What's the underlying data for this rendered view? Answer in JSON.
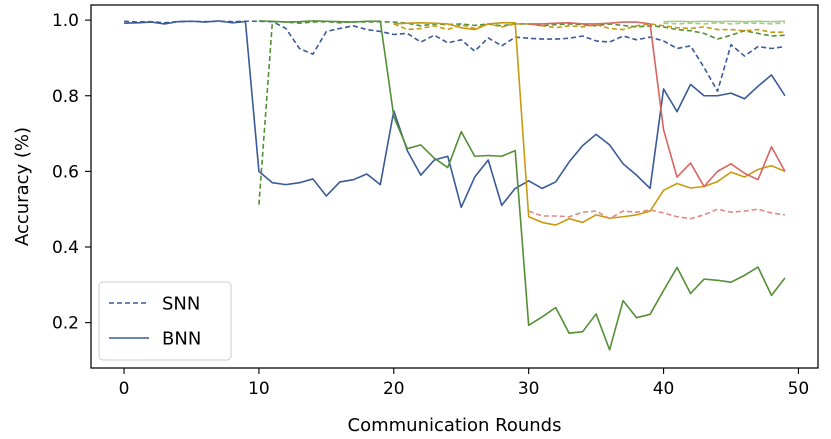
{
  "chart_data": {
    "type": "line",
    "title": "",
    "xlabel": "Communication Rounds",
    "ylabel": "Accuracy (%)",
    "xlim": [
      -2.45,
      51.45
    ],
    "ylim": [
      0.08,
      1.04
    ],
    "xticks": [
      "0",
      "10",
      "20",
      "30",
      "40",
      "50"
    ],
    "yticks": [
      "0.2",
      "0.4",
      "0.6",
      "0.8",
      "1.0"
    ],
    "grid": false,
    "legend": {
      "position": "lower-left",
      "entries": [
        {
          "label": "SNN",
          "style": "dashed",
          "color": "#3a5a98"
        },
        {
          "label": "BNN",
          "style": "solid",
          "color": "#3a5a98"
        }
      ]
    },
    "series": [
      {
        "kind": "SNN",
        "style": "dashed",
        "color": "#3a5a98",
        "x": [
          0,
          1,
          2,
          3,
          4,
          5,
          6,
          7,
          8,
          9,
          10,
          11,
          12,
          13,
          14,
          15,
          16,
          17,
          18,
          19,
          20,
          21,
          22,
          23,
          24,
          25,
          26,
          27,
          28,
          29,
          30,
          31,
          32,
          33,
          34,
          35,
          36,
          37,
          38,
          39,
          40,
          41,
          42,
          43,
          44,
          45,
          46,
          47,
          48,
          49
        ],
        "y": [
          0.997,
          0.995,
          0.996,
          0.993,
          0.996,
          0.997,
          0.996,
          0.997,
          0.996,
          0.997,
          0.997,
          0.996,
          0.978,
          0.925,
          0.91,
          0.97,
          0.978,
          0.985,
          0.975,
          0.97,
          0.962,
          0.965,
          0.942,
          0.96,
          0.94,
          0.948,
          0.918,
          0.953,
          0.932,
          0.955,
          0.952,
          0.95,
          0.95,
          0.952,
          0.958,
          0.945,
          0.942,
          0.958,
          0.948,
          0.955,
          0.945,
          0.925,
          0.932,
          0.875,
          0.812,
          0.935,
          0.905,
          0.93,
          0.925,
          0.93
        ]
      },
      {
        "kind": "BNN",
        "style": "solid",
        "color": "#3a5a98",
        "x": [
          0,
          1,
          2,
          3,
          4,
          5,
          6,
          7,
          8,
          9,
          10,
          11,
          12,
          13,
          14,
          15,
          16,
          17,
          18,
          19,
          20,
          21,
          22,
          23,
          24,
          25,
          26,
          27,
          28,
          29,
          30,
          31,
          32,
          33,
          34,
          35,
          36,
          37,
          38,
          39,
          40,
          41,
          42,
          43,
          44,
          45,
          46,
          47,
          48,
          49
        ],
        "y": [
          0.992,
          0.993,
          0.995,
          0.99,
          0.996,
          0.997,
          0.995,
          0.998,
          0.993,
          0.996,
          0.6,
          0.57,
          0.565,
          0.57,
          0.58,
          0.535,
          0.572,
          0.578,
          0.593,
          0.565,
          0.76,
          0.655,
          0.59,
          0.63,
          0.64,
          0.505,
          0.585,
          0.63,
          0.51,
          0.555,
          0.575,
          0.555,
          0.572,
          0.625,
          0.668,
          0.698,
          0.67,
          0.62,
          0.59,
          0.555,
          0.818,
          0.758,
          0.83,
          0.8,
          0.8,
          0.807,
          0.792,
          0.825,
          0.855,
          0.8
        ]
      },
      {
        "kind": "SNN",
        "style": "dashed",
        "color": "#538f35",
        "x": [
          10,
          11,
          12,
          13,
          14,
          15,
          16,
          17,
          18,
          19,
          20,
          21,
          22,
          23,
          24,
          25,
          26,
          27,
          28,
          29,
          30,
          31,
          32,
          33,
          34,
          35,
          36,
          37,
          38,
          39,
          40,
          41,
          42,
          43,
          44,
          45,
          46,
          47,
          48,
          49
        ],
        "y": [
          0.512,
          0.996,
          0.995,
          0.992,
          0.995,
          0.996,
          0.993,
          0.996,
          0.995,
          0.996,
          0.995,
          0.992,
          0.985,
          0.99,
          0.988,
          0.99,
          0.986,
          0.99,
          0.985,
          0.99,
          0.99,
          0.985,
          0.988,
          0.99,
          0.988,
          0.985,
          0.99,
          0.986,
          0.982,
          0.985,
          0.982,
          0.975,
          0.972,
          0.965,
          0.95,
          0.96,
          0.972,
          0.965,
          0.958,
          0.96
        ]
      },
      {
        "kind": "BNN",
        "style": "solid",
        "color": "#538f35",
        "x": [
          10,
          11,
          12,
          13,
          14,
          15,
          16,
          17,
          18,
          19,
          20,
          21,
          22,
          23,
          24,
          25,
          26,
          27,
          28,
          29,
          30,
          31,
          32,
          33,
          34,
          35,
          36,
          37,
          38,
          39,
          40,
          41,
          42,
          43,
          44,
          45,
          46,
          47,
          48,
          49
        ],
        "y": [
          0.998,
          0.997,
          0.995,
          0.996,
          0.998,
          0.997,
          0.996,
          0.995,
          0.997,
          0.997,
          0.745,
          0.66,
          0.67,
          0.635,
          0.61,
          0.705,
          0.64,
          0.642,
          0.64,
          0.655,
          0.193,
          0.215,
          0.24,
          0.172,
          0.176,
          0.223,
          0.128,
          0.258,
          0.213,
          0.222,
          0.285,
          0.346,
          0.277,
          0.315,
          0.312,
          0.307,
          0.325,
          0.347,
          0.272,
          0.318
        ]
      },
      {
        "kind": "SNN",
        "style": "dashed",
        "color": "#c89a10",
        "x": [
          20,
          21,
          22,
          23,
          24,
          25,
          26,
          27,
          28,
          29,
          30,
          31,
          32,
          33,
          34,
          35,
          36,
          37,
          38,
          39,
          40,
          41,
          42,
          43,
          44,
          45,
          46,
          47,
          48,
          49
        ],
        "y": [
          0.99,
          0.975,
          0.978,
          0.985,
          0.975,
          0.988,
          0.978,
          0.99,
          0.982,
          0.99,
          0.99,
          0.985,
          0.98,
          0.985,
          0.982,
          0.988,
          0.978,
          0.975,
          0.985,
          0.99,
          0.985,
          0.98,
          0.978,
          0.982,
          0.975,
          0.975,
          0.972,
          0.975,
          0.968,
          0.968
        ]
      },
      {
        "kind": "BNN",
        "style": "solid",
        "color": "#c89a10",
        "x": [
          20,
          21,
          22,
          23,
          24,
          25,
          26,
          27,
          28,
          29,
          30,
          31,
          32,
          33,
          34,
          35,
          36,
          37,
          38,
          39,
          40,
          41,
          42,
          43,
          44,
          45,
          46,
          47,
          48,
          49
        ],
        "y": [
          0.99,
          0.992,
          0.993,
          0.992,
          0.99,
          0.98,
          0.975,
          0.99,
          0.993,
          0.993,
          0.48,
          0.465,
          0.458,
          0.475,
          0.465,
          0.485,
          0.476,
          0.48,
          0.485,
          0.495,
          0.55,
          0.568,
          0.556,
          0.56,
          0.573,
          0.598,
          0.585,
          0.605,
          0.615,
          0.6
        ]
      },
      {
        "kind": "SNN",
        "style": "dashed",
        "color": "#dd8a85",
        "x": [
          30,
          31,
          32,
          33,
          34,
          35,
          36,
          37,
          38,
          39,
          40,
          41,
          42,
          43,
          44,
          45,
          46,
          47,
          48,
          49
        ],
        "y": [
          0.495,
          0.482,
          0.482,
          0.48,
          0.492,
          0.495,
          0.475,
          0.495,
          0.492,
          0.498,
          0.49,
          0.48,
          0.475,
          0.485,
          0.5,
          0.492,
          0.495,
          0.5,
          0.49,
          0.485
        ]
      },
      {
        "kind": "BNN",
        "style": "solid",
        "color": "#d86560",
        "x": [
          30,
          31,
          32,
          33,
          34,
          35,
          36,
          37,
          38,
          39,
          40,
          41,
          42,
          43,
          44,
          45,
          46,
          47,
          48,
          49
        ],
        "y": [
          0.99,
          0.99,
          0.992,
          0.993,
          0.99,
          0.99,
          0.992,
          0.995,
          0.995,
          0.99,
          0.71,
          0.585,
          0.622,
          0.56,
          0.6,
          0.62,
          0.595,
          0.578,
          0.665,
          0.6
        ]
      },
      {
        "kind": "SNN",
        "style": "dashed",
        "color": "#a8cc88",
        "x": [
          40,
          41,
          42,
          43,
          44,
          45,
          46,
          47,
          48,
          49
        ],
        "y": [
          0.992,
          0.99,
          0.992,
          0.99,
          0.993,
          0.99,
          0.992,
          0.992,
          0.99,
          0.993
        ]
      },
      {
        "kind": "BNN",
        "style": "solid",
        "color": "#a8cc88",
        "x": [
          40,
          41,
          42,
          43,
          44,
          45,
          46,
          47,
          48,
          49
        ],
        "y": [
          0.996,
          0.997,
          0.996,
          0.997,
          0.996,
          0.997,
          0.996,
          0.997,
          0.996,
          0.997
        ]
      }
    ]
  }
}
